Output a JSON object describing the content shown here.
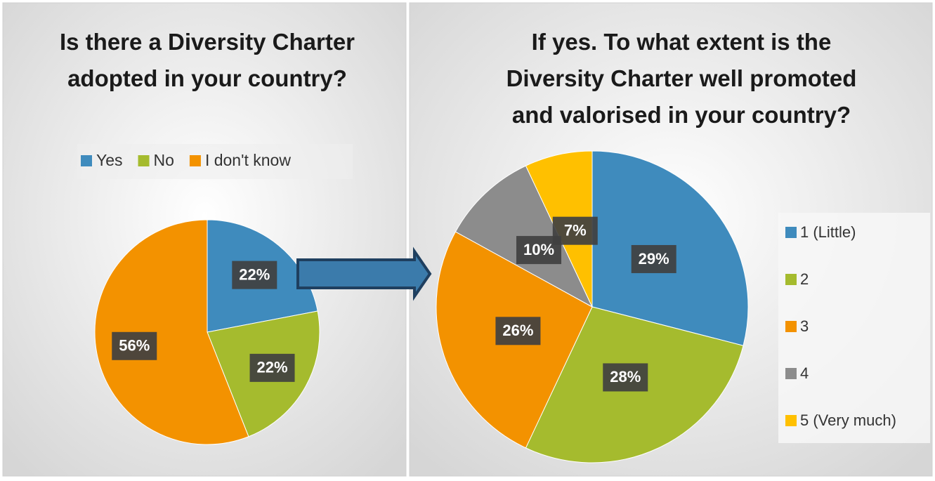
{
  "chart_data": [
    {
      "type": "pie",
      "title": "Is there a Diversity Charter adopted in your country?",
      "categories": [
        "Yes",
        "No",
        "I don't know"
      ],
      "values": [
        22,
        22,
        56
      ],
      "value_labels": [
        "22%",
        "22%",
        "56%"
      ],
      "colors": [
        "#3f8bbd",
        "#a5bb2e",
        "#f39200"
      ],
      "legend": "top"
    },
    {
      "type": "pie",
      "title": "If yes. To what extent is the Diversity Charter well promoted and valorised in your country?",
      "categories": [
        "1 (Little)",
        "2",
        "3",
        "4",
        "5 (Very much)"
      ],
      "values": [
        29,
        28,
        26,
        10,
        7
      ],
      "value_labels": [
        "29%",
        "28%",
        "26%",
        "10%",
        "7%"
      ],
      "colors": [
        "#3f8bbd",
        "#a5bb2e",
        "#f39200",
        "#8c8c8c",
        "#ffc000"
      ],
      "legend": "right"
    }
  ]
}
